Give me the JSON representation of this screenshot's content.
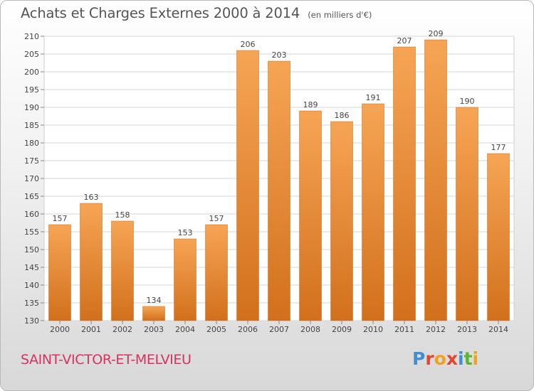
{
  "header": {
    "title": "Achats et Charges Externes 2000 à 2014",
    "unit_note": "(en milliers d'€)"
  },
  "footer": {
    "commune": "SAINT-VICTOR-ET-MELVIEU",
    "brand": "Proxiti",
    "brand_letters": [
      {
        "ch": "P",
        "color": "#3f8fd6"
      },
      {
        "ch": "r",
        "color": "#e7432e"
      },
      {
        "ch": "o",
        "color": "#f0a21b"
      },
      {
        "ch": "x",
        "color": "#e7432e"
      },
      {
        "ch": "i",
        "color": "#3f8fd6"
      },
      {
        "ch": "t",
        "color": "#5bb531"
      },
      {
        "ch": "i",
        "color": "#f0a21b"
      }
    ]
  },
  "chart_data": {
    "type": "bar",
    "title": "Achats et Charges Externes 2000 à 2014",
    "subtitle": "(en milliers d'€)",
    "categories": [
      "2000",
      "2001",
      "2002",
      "2003",
      "2004",
      "2005",
      "2006",
      "2007",
      "2008",
      "2009",
      "2010",
      "2011",
      "2012",
      "2013",
      "2014"
    ],
    "values": [
      157,
      163,
      158,
      134,
      153,
      157,
      206,
      203,
      189,
      186,
      191,
      207,
      209,
      190,
      177
    ],
    "xlabel": "",
    "ylabel": "",
    "ylim": [
      130,
      210
    ],
    "yticks": [
      130,
      135,
      140,
      145,
      150,
      155,
      160,
      165,
      170,
      175,
      180,
      185,
      190,
      195,
      200,
      205,
      210
    ],
    "grid": true,
    "bar_color_top": "#f6a555",
    "bar_color_bottom": "#d2701c"
  }
}
